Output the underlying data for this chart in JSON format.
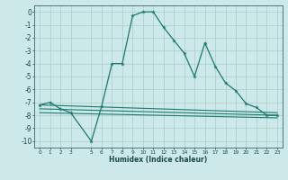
{
  "xlabel": "Humidex (Indice chaleur)",
  "bg_color": "#cce8e8",
  "grid_color": "#aacccc",
  "line_color": "#1a7a6e",
  "xlim": [
    -0.5,
    23.5
  ],
  "ylim": [
    -10.5,
    0.5
  ],
  "xticks": [
    0,
    1,
    2,
    3,
    5,
    6,
    7,
    8,
    9,
    10,
    11,
    12,
    13,
    14,
    15,
    16,
    17,
    18,
    19,
    20,
    21,
    22,
    23
  ],
  "yticks": [
    0,
    -1,
    -2,
    -3,
    -4,
    -5,
    -6,
    -7,
    -8,
    -9,
    -10
  ],
  "series_main": {
    "x": [
      0,
      1,
      2,
      3,
      5,
      6,
      7,
      8,
      9,
      10,
      11,
      12,
      13,
      14,
      15,
      16,
      17,
      18,
      19,
      20,
      21,
      22,
      23
    ],
    "y": [
      -7.2,
      -7.0,
      -7.5,
      -7.8,
      -10.0,
      -7.3,
      -4.0,
      -4.0,
      -0.3,
      0.0,
      0.0,
      -1.2,
      -2.2,
      -3.2,
      -5.0,
      -2.4,
      -4.2,
      -5.5,
      -6.1,
      -7.1,
      -7.4,
      -8.0,
      -8.0
    ]
  },
  "series_flat": [
    {
      "x": [
        0,
        23
      ],
      "y": [
        -7.2,
        -7.8
      ]
    },
    {
      "x": [
        0,
        23
      ],
      "y": [
        -7.5,
        -8.0
      ]
    },
    {
      "x": [
        0,
        23
      ],
      "y": [
        -7.8,
        -8.2
      ]
    }
  ]
}
